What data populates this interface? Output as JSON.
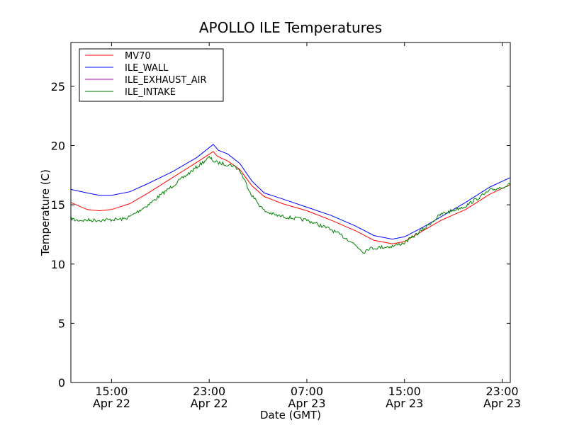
{
  "chart_data": {
    "type": "line",
    "title": "APOLLO ILE Temperatures",
    "xlabel": "Date (GMT)",
    "ylabel": "Temperature (C)",
    "xlim": [
      "2011-04-22 11:40",
      "2011-04-23 23:40"
    ],
    "ylim": [
      0,
      28.7
    ],
    "yticks": [
      0,
      5,
      10,
      15,
      20,
      25
    ],
    "xticks": [
      {
        "value": "2011-04-22 15:00",
        "line1": "15:00",
        "line2": "Apr 22"
      },
      {
        "value": "2011-04-22 23:00",
        "line1": "23:00",
        "line2": "Apr 22"
      },
      {
        "value": "2011-04-23 07:00",
        "line1": "07:00",
        "line2": "Apr 23"
      },
      {
        "value": "2011-04-23 15:00",
        "line1": "15:00",
        "line2": "Apr 23"
      },
      {
        "value": "2011-04-23 23:00",
        "line1": "23:00",
        "line2": "Apr 23"
      }
    ],
    "grid": false,
    "legend_position": "top-left",
    "series": [
      {
        "name": "MV70",
        "color": "#ff0000",
        "points": [
          [
            "2011-04-22 11:40",
            15.2
          ],
          [
            "2011-04-22 13:00",
            14.6
          ],
          [
            "2011-04-22 14:00",
            14.5
          ],
          [
            "2011-04-22 15:00",
            14.6
          ],
          [
            "2011-04-22 16:30",
            15.1
          ],
          [
            "2011-04-22 18:00",
            16.0
          ],
          [
            "2011-04-22 20:00",
            17.3
          ],
          [
            "2011-04-22 22:00",
            18.6
          ],
          [
            "2011-04-22 23:20",
            19.5
          ],
          [
            "2011-04-22 23:40",
            19.1
          ],
          [
            "2011-04-23 00:30",
            18.7
          ],
          [
            "2011-04-23 01:30",
            18.0
          ],
          [
            "2011-04-23 02:30",
            16.6
          ],
          [
            "2011-04-23 03:30",
            15.7
          ],
          [
            "2011-04-23 05:00",
            15.1
          ],
          [
            "2011-04-23 07:00",
            14.5
          ],
          [
            "2011-04-23 09:00",
            13.7
          ],
          [
            "2011-04-23 11:00",
            12.8
          ],
          [
            "2011-04-23 12:30",
            12.0
          ],
          [
            "2011-04-23 14:00",
            11.7
          ],
          [
            "2011-04-23 15:00",
            11.9
          ],
          [
            "2011-04-23 16:30",
            12.8
          ],
          [
            "2011-04-23 18:00",
            13.7
          ],
          [
            "2011-04-23 20:00",
            14.6
          ],
          [
            "2011-04-23 22:00",
            15.9
          ],
          [
            "2011-04-23 23:40",
            16.7
          ]
        ]
      },
      {
        "name": "ILE_WALL",
        "color": "#0000ff",
        "points": [
          [
            "2011-04-22 11:40",
            16.3
          ],
          [
            "2011-04-22 13:00",
            16.0
          ],
          [
            "2011-04-22 14:00",
            15.8
          ],
          [
            "2011-04-22 15:00",
            15.8
          ],
          [
            "2011-04-22 16:30",
            16.1
          ],
          [
            "2011-04-22 18:00",
            16.8
          ],
          [
            "2011-04-22 20:00",
            17.8
          ],
          [
            "2011-04-22 22:00",
            19.0
          ],
          [
            "2011-04-22 23:20",
            20.1
          ],
          [
            "2011-04-22 23:45",
            19.6
          ],
          [
            "2011-04-23 00:30",
            19.3
          ],
          [
            "2011-04-23 01:30",
            18.5
          ],
          [
            "2011-04-23 02:30",
            17.0
          ],
          [
            "2011-04-23 03:30",
            16.0
          ],
          [
            "2011-04-23 05:00",
            15.5
          ],
          [
            "2011-04-23 07:00",
            14.8
          ],
          [
            "2011-04-23 09:00",
            14.1
          ],
          [
            "2011-04-23 11:00",
            13.2
          ],
          [
            "2011-04-23 12:30",
            12.4
          ],
          [
            "2011-04-23 14:00",
            12.1
          ],
          [
            "2011-04-23 15:00",
            12.3
          ],
          [
            "2011-04-23 16:30",
            13.1
          ],
          [
            "2011-04-23 18:00",
            14.0
          ],
          [
            "2011-04-23 20:00",
            15.2
          ],
          [
            "2011-04-23 22:00",
            16.5
          ],
          [
            "2011-04-23 23:40",
            17.3
          ]
        ]
      },
      {
        "name": "ILE_EXHAUST_AIR",
        "color": "#bf00bf",
        "points": []
      },
      {
        "name": "ILE_INTAKE",
        "color": "#008000",
        "noisy": true,
        "points": [
          [
            "2011-04-22 11:40",
            13.9
          ],
          [
            "2011-04-22 12:00",
            13.7
          ],
          [
            "2011-04-22 14:00",
            13.7
          ],
          [
            "2011-04-22 16:00",
            13.8
          ],
          [
            "2011-04-22 16:30",
            14.0
          ],
          [
            "2011-04-22 18:00",
            15.0
          ],
          [
            "2011-04-22 20:00",
            16.6
          ],
          [
            "2011-04-22 22:00",
            18.2
          ],
          [
            "2011-04-22 23:00",
            19.0
          ],
          [
            "2011-04-22 23:30",
            18.6
          ],
          [
            "2011-04-23 01:00",
            18.3
          ],
          [
            "2011-04-23 01:30",
            17.9
          ],
          [
            "2011-04-23 02:30",
            15.8
          ],
          [
            "2011-04-23 03:30",
            14.5
          ],
          [
            "2011-04-23 04:30",
            14.1
          ],
          [
            "2011-04-23 07:00",
            13.7
          ],
          [
            "2011-04-23 09:00",
            12.9
          ],
          [
            "2011-04-23 10:30",
            12.0
          ],
          [
            "2011-04-23 11:40",
            11.0
          ],
          [
            "2011-04-23 12:00",
            11.3
          ],
          [
            "2011-04-23 14:00",
            11.5
          ],
          [
            "2011-04-23 15:00",
            11.8
          ],
          [
            "2011-04-23 16:30",
            12.9
          ],
          [
            "2011-04-23 18:00",
            14.2
          ],
          [
            "2011-04-23 20:00",
            14.9
          ],
          [
            "2011-04-23 22:00",
            16.2
          ],
          [
            "2011-04-23 23:40",
            16.7
          ]
        ]
      }
    ]
  }
}
